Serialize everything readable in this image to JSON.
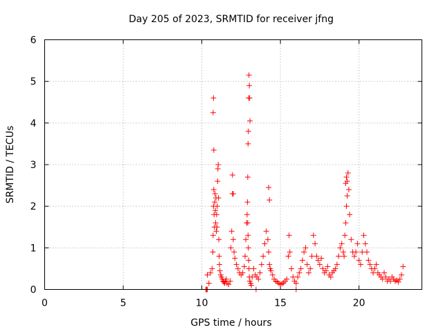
{
  "chart_data": {
    "type": "scatter",
    "title": "Day 205 of 2023, SRMTID for receiver jfng",
    "xlabel": "GPS time / hours",
    "ylabel": "SRMTID / TECUs",
    "xlim": [
      0,
      24.0
    ],
    "ylim": [
      0,
      6
    ],
    "xticks": [
      0,
      5,
      10,
      15,
      20
    ],
    "xtick_labels": [
      "0",
      "5",
      "10",
      "15",
      "20"
    ],
    "yticks": [
      0,
      1,
      2,
      3,
      4,
      5,
      6
    ],
    "ytick_labels": [
      "0",
      "1",
      "2",
      "3",
      "4",
      "5",
      "6"
    ],
    "grid": true,
    "marker": "+",
    "series": [
      {
        "name": "SRMTID",
        "color": "#ff0000",
        "x": [
          10.25,
          10.35,
          10.45,
          10.55,
          10.65,
          10.7,
          10.72,
          10.74,
          10.76,
          10.78,
          10.8,
          10.82,
          10.84,
          10.86,
          10.88,
          10.9,
          10.92,
          10.94,
          10.96,
          10.98,
          11.0,
          11.02,
          11.04,
          11.06,
          11.08,
          11.1,
          11.12,
          11.15,
          11.2,
          11.25,
          11.3,
          11.35,
          11.4,
          11.45,
          11.5,
          11.55,
          11.6,
          11.7,
          11.8,
          11.85,
          11.9,
          11.95,
          12.0,
          12.05,
          12.1,
          12.2,
          12.3,
          12.4,
          12.5,
          12.6,
          12.7,
          12.75,
          12.8,
          12.85,
          12.88,
          12.9,
          12.92,
          12.94,
          12.96,
          12.98,
          13.0,
          13.02,
          13.05,
          13.1,
          13.15,
          13.2,
          13.3,
          13.4,
          13.5,
          13.6,
          13.7,
          13.8,
          13.9,
          14.0,
          14.1,
          14.2,
          14.25,
          14.3,
          14.35,
          14.4,
          14.5,
          14.6,
          14.7,
          14.8,
          14.9,
          15.0,
          15.1,
          15.2,
          15.3,
          15.4,
          15.5,
          15.55,
          15.6,
          15.7,
          15.8,
          15.9,
          16.0,
          16.1,
          16.2,
          16.3,
          16.4,
          16.5,
          16.6,
          16.7,
          16.8,
          16.9,
          17.0,
          17.1,
          17.2,
          17.3,
          17.4,
          17.5,
          17.6,
          17.7,
          17.8,
          17.9,
          18.0,
          18.1,
          18.2,
          18.3,
          18.4,
          18.5,
          18.6,
          18.7,
          18.8,
          18.9,
          19.0,
          19.05,
          19.1,
          19.15,
          19.2,
          19.25,
          19.3,
          19.35,
          19.4,
          19.5,
          19.6,
          19.7,
          19.8,
          19.9,
          20.0,
          20.1,
          20.2,
          20.3,
          20.4,
          20.5,
          20.6,
          20.7,
          20.8,
          20.9,
          21.0,
          21.1,
          21.2,
          21.3,
          21.4,
          21.5,
          21.6,
          21.7,
          21.8,
          21.9,
          22.0,
          22.1,
          22.2,
          22.3,
          22.4,
          22.5,
          22.6,
          22.7,
          22.8,
          13.0,
          13.02,
          13.04,
          13.06,
          12.98,
          12.96,
          12.94,
          12.92,
          10.72,
          10.74,
          10.76,
          19.15,
          19.2,
          19.25,
          14.25,
          14.3,
          11.95,
          12.0,
          10.3,
          10.35,
          13.45,
          16.0
        ],
        "y": [
          0.0,
          0.35,
          0.15,
          0.4,
          0.5,
          0.9,
          1.3,
          2.0,
          2.4,
          1.8,
          1.5,
          2.1,
          2.3,
          1.9,
          1.6,
          2.2,
          1.4,
          1.8,
          1.5,
          2.0,
          2.6,
          2.9,
          3.0,
          2.2,
          1.2,
          0.8,
          0.6,
          0.45,
          0.35,
          0.3,
          0.25,
          0.2,
          0.18,
          0.15,
          0.2,
          0.25,
          0.15,
          0.12,
          0.2,
          1.0,
          1.4,
          2.3,
          1.2,
          0.9,
          0.75,
          0.6,
          0.5,
          0.4,
          0.35,
          0.4,
          0.55,
          0.8,
          1.2,
          1.6,
          1.8,
          2.1,
          1.6,
          1.3,
          1.0,
          0.7,
          0.5,
          0.3,
          0.2,
          0.15,
          0.1,
          0.3,
          0.5,
          0.35,
          0.3,
          0.25,
          0.4,
          0.6,
          0.8,
          1.1,
          1.4,
          1.2,
          0.9,
          0.6,
          0.5,
          0.45,
          0.35,
          0.25,
          0.2,
          0.18,
          0.15,
          0.12,
          0.14,
          0.16,
          0.2,
          0.25,
          0.8,
          1.3,
          0.9,
          0.5,
          0.3,
          0.2,
          0.15,
          0.3,
          0.4,
          0.5,
          0.7,
          0.9,
          1.0,
          0.6,
          0.4,
          0.5,
          0.8,
          1.3,
          1.1,
          0.8,
          0.7,
          0.6,
          0.75,
          0.5,
          0.4,
          0.45,
          0.55,
          0.35,
          0.3,
          0.4,
          0.45,
          0.5,
          0.6,
          0.8,
          1.0,
          1.1,
          0.9,
          0.8,
          1.3,
          1.6,
          2.0,
          2.6,
          2.8,
          2.4,
          1.8,
          1.2,
          0.9,
          0.8,
          0.9,
          1.1,
          0.7,
          0.6,
          0.9,
          1.3,
          1.1,
          0.9,
          0.7,
          0.6,
          0.5,
          0.4,
          0.5,
          0.6,
          0.4,
          0.35,
          0.3,
          0.25,
          0.4,
          0.3,
          0.2,
          0.25,
          0.2,
          0.3,
          0.25,
          0.2,
          0.22,
          0.18,
          0.25,
          0.35,
          0.55,
          5.15,
          4.9,
          4.6,
          4.05,
          4.6,
          3.8,
          3.5,
          2.7,
          4.25,
          4.6,
          3.35,
          2.55,
          2.7,
          2.25,
          2.45,
          2.15,
          2.75,
          2.3,
          0.0,
          0.0,
          0.0,
          0.0
        ]
      }
    ]
  }
}
